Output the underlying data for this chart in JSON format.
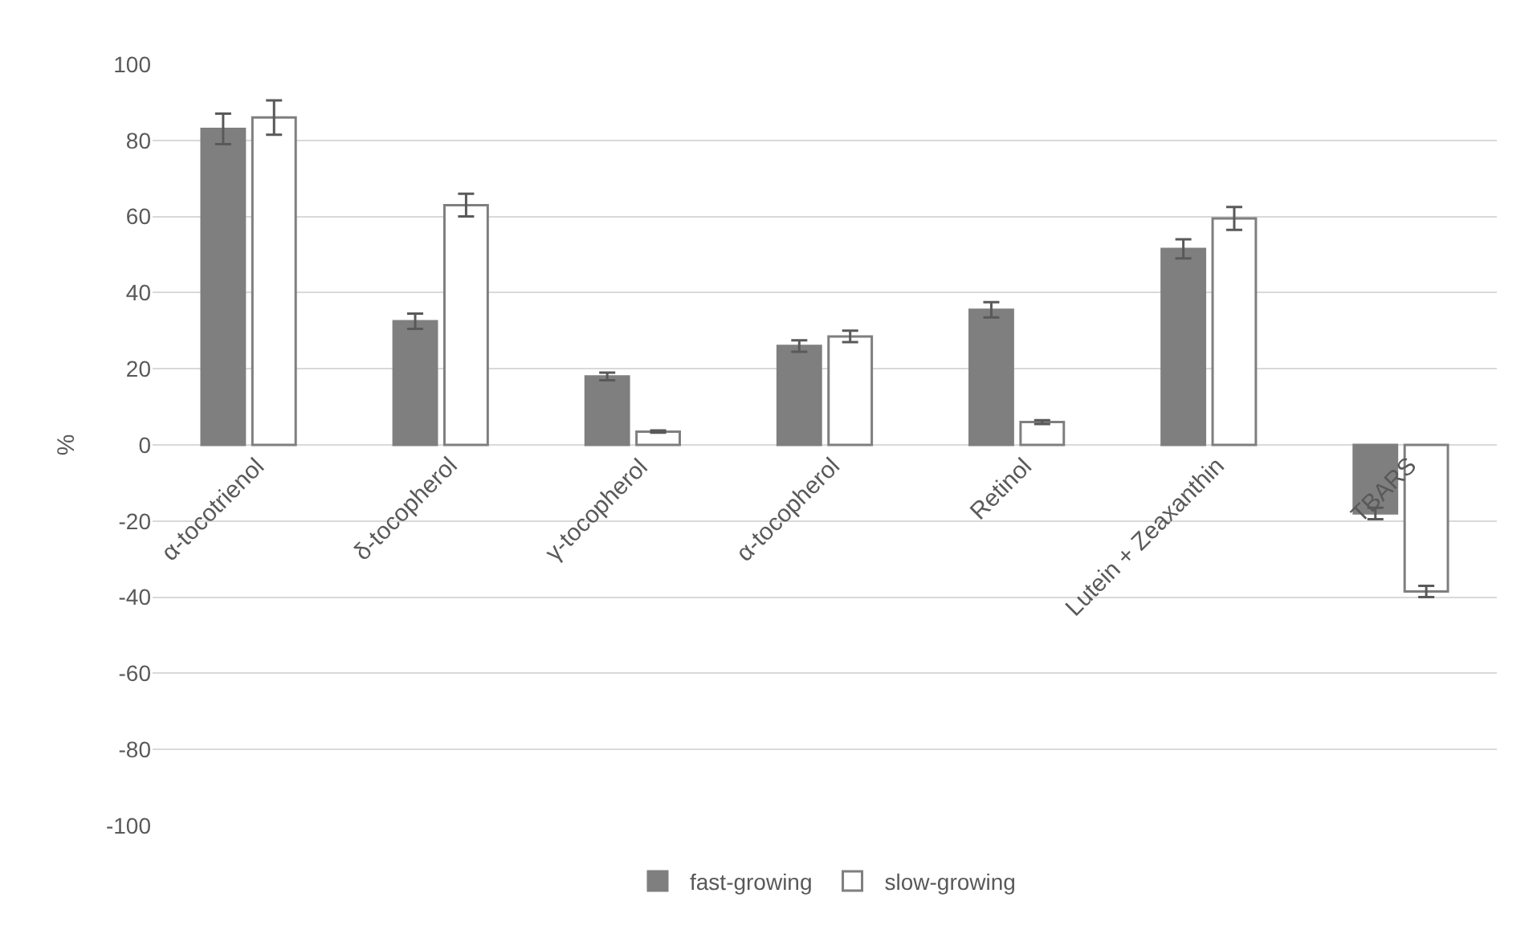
{
  "chart_data": {
    "type": "bar",
    "ylabel": "%",
    "categories": [
      "α-tocotrienol",
      "δ-tocopherol",
      "γ-tocopherol",
      "α-tocopherol",
      "Retinol",
      "Lutein + Zeaxanthin",
      "TBARS"
    ],
    "series": [
      {
        "name": "fast-growing",
        "color": "#7f7f7f",
        "values": [
          83,
          32.5,
          18,
          26,
          35.5,
          51.5,
          -18
        ],
        "errors": [
          4,
          2,
          1,
          1.5,
          2,
          2.5,
          1.5
        ]
      },
      {
        "name": "slow-growing",
        "color": "#7f7f7f",
        "values": [
          86,
          63,
          3.5,
          28.5,
          6,
          59.5,
          -38.5
        ],
        "errors": [
          4.5,
          3,
          0.3,
          1.5,
          0.5,
          3,
          1.5
        ]
      }
    ],
    "ylim": [
      -100,
      100
    ],
    "yticks": [
      -100,
      -80,
      -60,
      -40,
      -20,
      0,
      20,
      40,
      60,
      80,
      100
    ],
    "grid": "y",
    "legend": "bottom"
  }
}
